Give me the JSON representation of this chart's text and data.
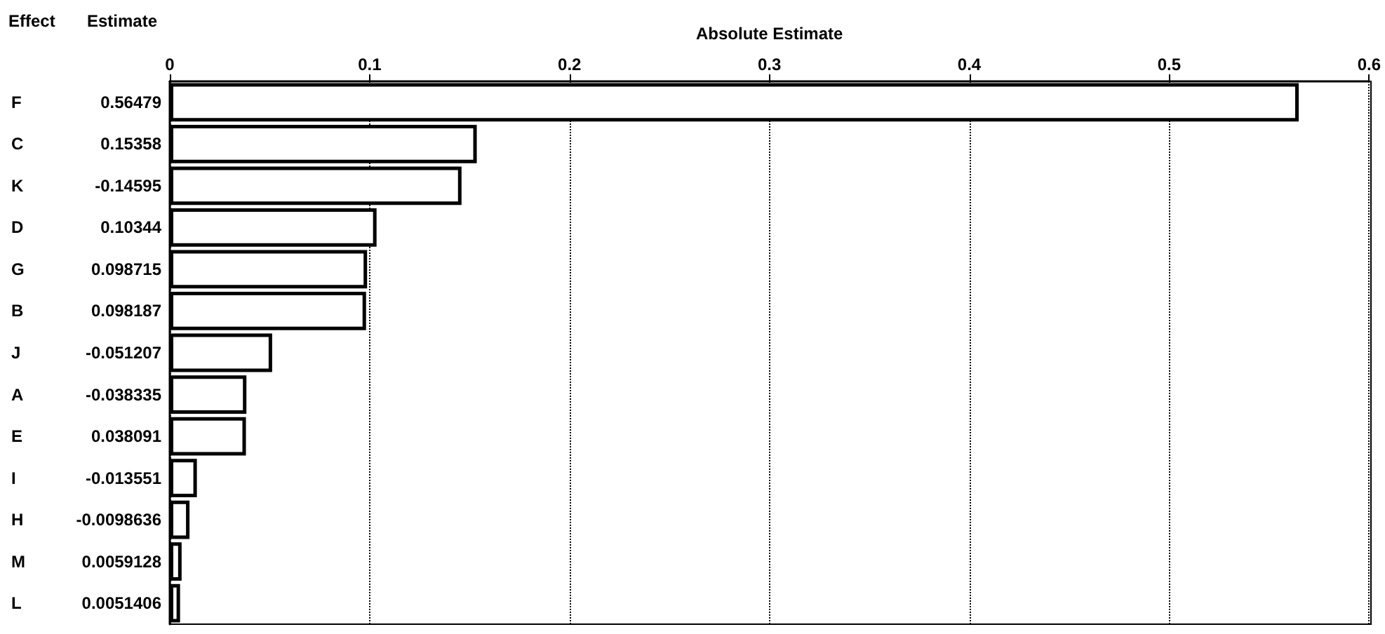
{
  "chart_data": {
    "type": "bar",
    "orientation": "horizontal",
    "xlabel": "Absolute Estimate",
    "ylabel": "Effect",
    "annotations": [
      "Estimate",
      "0.56479",
      "0.15358",
      "-0.14595",
      "0.10344",
      "0.098715",
      "0.098187",
      "-0.051207",
      "-0.038335",
      "0.038091",
      "-0.013551",
      "-0.0098636",
      "0.0059128",
      "0.0051406"
    ],
    "categories": [
      "F",
      "C",
      "K",
      "D",
      "G",
      "B",
      "J",
      "A",
      "E",
      "I",
      "H",
      "M",
      "L"
    ],
    "series": [
      {
        "color": "#ffffff",
        "values": [
          0.56479,
          0.15358,
          0.14595,
          0.10344,
          0.098715,
          0.098187,
          0.051207,
          0.038335,
          0.038091,
          0.013551,
          0.0098636,
          0.0059128,
          0.0051406
        ]
      }
    ],
    "xlim": [
      0,
      0.6
    ],
    "xticks": [
      0,
      0.1,
      0.2,
      0.3,
      0.4,
      0.5,
      0.6
    ],
    "grid": "x",
    "line_style": "dotted"
  }
}
